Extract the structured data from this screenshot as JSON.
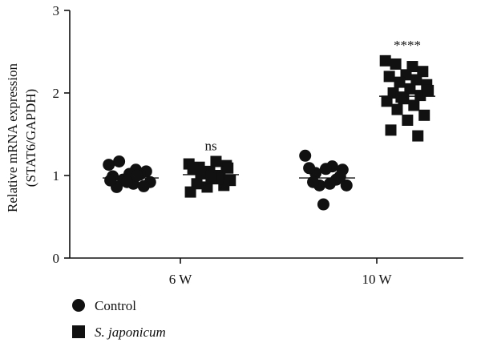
{
  "chart_data": {
    "type": "scatter",
    "ylabel": [
      "Relative mRNA expression",
      "(STAT6/GAPDH)"
    ],
    "ylim": [
      0,
      3
    ],
    "yticks": [
      0,
      1,
      2,
      3
    ],
    "categories": [
      "6 W",
      "10 W"
    ],
    "legend_position": "bottom-left",
    "series": [
      {
        "name": "Control",
        "marker": "circle",
        "groups": {
          "6 W": {
            "mean": 0.97,
            "values": [
              1.13,
              1.07,
              1.17,
              1.05,
              1.02,
              0.99,
              1.01,
              0.95,
              0.92,
              0.9,
              0.86,
              0.87,
              0.92,
              0.94,
              1.0
            ]
          },
          "10 W": {
            "mean": 0.97,
            "values": [
              1.24,
              1.11,
              1.03,
              1.07,
              1.08,
              1.09,
              0.95,
              0.88,
              0.88,
              0.9,
              0.92,
              0.99,
              0.65
            ]
          }
        }
      },
      {
        "name": "S. japonicum",
        "marker": "square",
        "groups": {
          "6 W": {
            "mean": 1.01,
            "values": [
              1.14,
              1.17,
              1.1,
              1.12,
              1.05,
              1.08,
              1.0,
              1.02,
              0.94,
              0.97,
              0.9,
              0.88,
              0.86,
              0.8,
              0.96,
              1.03,
              1.09,
              0.98
            ]
          },
          "10 W": {
            "mean": 1.96,
            "values": [
              2.39,
              2.32,
              2.35,
              2.26,
              2.22,
              2.2,
              2.16,
              2.13,
              2.1,
              2.05,
              2.0,
              1.97,
              1.93,
              1.9,
              1.85,
              1.8,
              1.73,
              1.67,
              1.55,
              1.48,
              1.95,
              2.03
            ]
          }
        }
      }
    ],
    "annotations": [
      {
        "category": "6 W",
        "series": "S. japonicum",
        "text": "ns"
      },
      {
        "category": "10 W",
        "series": "S. japonicum",
        "text": "****"
      }
    ]
  }
}
